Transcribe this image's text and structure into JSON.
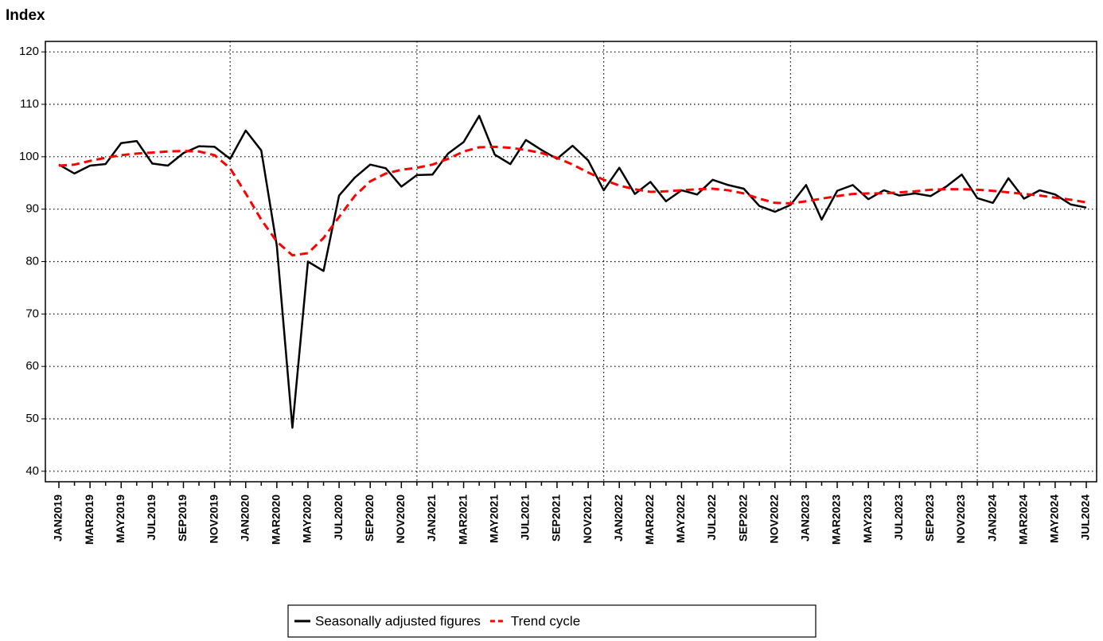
{
  "chart_data": {
    "type": "line",
    "title": "Index",
    "categories": [
      "JAN2019",
      null,
      "MAR2019",
      null,
      "MAY2019",
      null,
      "JUL2019",
      null,
      "SEP2019",
      null,
      "NOV2019",
      null,
      "JAN2020",
      null,
      "MAR2020",
      null,
      "MAY2020",
      null,
      "JUL2020",
      null,
      "SEP2020",
      null,
      "NOV2020",
      null,
      "JAN2021",
      null,
      "MAR2021",
      null,
      "MAY2021",
      null,
      "JUL2021",
      null,
      "SEP2021",
      null,
      "NOV2021",
      null,
      "JAN2022",
      null,
      "MAR2022",
      null,
      "MAY2022",
      null,
      "JUL2022",
      null,
      "SEP2022",
      null,
      "NOV2022",
      null,
      "JAN2023",
      null,
      "MAR2023",
      null,
      "MAY2023",
      null,
      "JUL2023",
      null,
      "SEP2023",
      null,
      "NOV2023",
      null,
      "JAN2024",
      null,
      "MAR2024",
      null,
      "MAY2024",
      null,
      "JUL2024"
    ],
    "series": [
      {
        "name": "Seasonally adjusted figures",
        "color": "#000000",
        "dash": "solid",
        "values": [
          98.5,
          96.8,
          98.3,
          98.6,
          102.6,
          103.0,
          98.7,
          98.3,
          100.7,
          102.0,
          101.9,
          99.6,
          105.0,
          101.2,
          83.0,
          48.3,
          80.0,
          78.2,
          92.6,
          96.0,
          98.5,
          97.8,
          94.3,
          96.5,
          96.6,
          100.6,
          102.8,
          107.8,
          100.4,
          98.6,
          103.2,
          101.3,
          99.6,
          102.1,
          99.3,
          93.6,
          97.9,
          92.9,
          95.2,
          91.5,
          93.6,
          92.8,
          95.6,
          94.6,
          93.9,
          90.6,
          89.5,
          90.8,
          94.6,
          88.0,
          93.5,
          94.6,
          91.9,
          93.6,
          92.6,
          93.0,
          92.5,
          94.3,
          96.6,
          92.1,
          91.2,
          95.9,
          92.0,
          93.6,
          92.8,
          90.9,
          90.3
        ]
      },
      {
        "name": "Trend cycle",
        "color": "#ff0000",
        "dash": "dashed",
        "values": [
          98.3,
          98.5,
          99.2,
          99.8,
          100.3,
          100.6,
          100.8,
          101.0,
          101.1,
          101.0,
          100.3,
          97.8,
          93.0,
          88.0,
          83.8,
          81.2,
          81.6,
          84.5,
          88.5,
          92.5,
          95.3,
          96.8,
          97.5,
          97.9,
          98.5,
          99.6,
          101.0,
          101.8,
          101.9,
          101.7,
          101.3,
          100.7,
          99.8,
          98.5,
          97.0,
          95.6,
          94.5,
          93.8,
          93.3,
          93.4,
          93.6,
          93.8,
          93.9,
          93.6,
          93.0,
          92.0,
          91.2,
          91.1,
          91.5,
          92.0,
          92.5,
          92.9,
          93.0,
          93.0,
          93.2,
          93.4,
          93.7,
          93.8,
          93.8,
          93.7,
          93.5,
          93.2,
          92.9,
          92.6,
          92.2,
          91.8,
          91.3
        ]
      }
    ],
    "ylim": [
      38,
      122
    ],
    "yticks": [
      40,
      50,
      60,
      70,
      80,
      90,
      100,
      110,
      120
    ],
    "grid": true,
    "legend": "bottom"
  }
}
